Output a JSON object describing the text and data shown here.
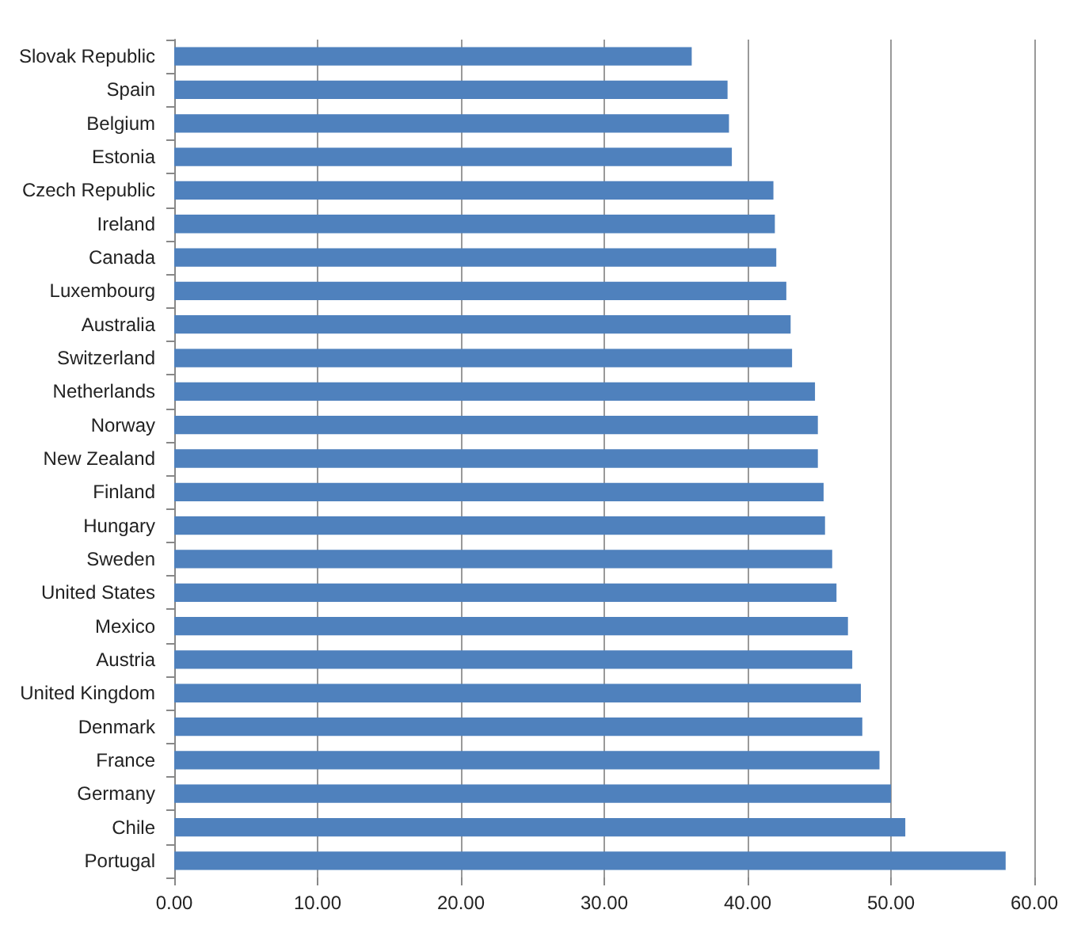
{
  "chart_data": {
    "type": "bar",
    "orientation": "horizontal",
    "categories": [
      "Slovak Republic",
      "Spain",
      "Belgium",
      "Estonia",
      "Czech Republic",
      "Ireland",
      "Canada",
      "Luxembourg",
      "Australia",
      "Switzerland",
      "Netherlands",
      "Norway",
      "New Zealand",
      "Finland",
      "Hungary",
      "Sweden",
      "United States",
      "Mexico",
      "Austria",
      "United Kingdom",
      "Denmark",
      "France",
      "Germany",
      "Chile",
      "Portugal"
    ],
    "values": [
      36.1,
      38.6,
      38.7,
      38.9,
      41.8,
      41.9,
      42.0,
      42.7,
      43.0,
      43.1,
      44.7,
      44.9,
      44.9,
      45.3,
      45.4,
      45.9,
      46.2,
      47.0,
      47.3,
      47.9,
      48.0,
      49.2,
      50.0,
      51.0,
      58.0
    ],
    "color": "#4f81bd",
    "xlim": [
      0,
      60
    ],
    "xticks": [
      {
        "value": 0,
        "label": "0.00"
      },
      {
        "value": 10,
        "label": "10.00"
      },
      {
        "value": 20,
        "label": "20.00"
      },
      {
        "value": 30,
        "label": "30.00"
      },
      {
        "value": 40,
        "label": "40.00"
      },
      {
        "value": 50,
        "label": "50.00"
      },
      {
        "value": 60,
        "label": "60.00"
      }
    ],
    "grid": "x"
  }
}
